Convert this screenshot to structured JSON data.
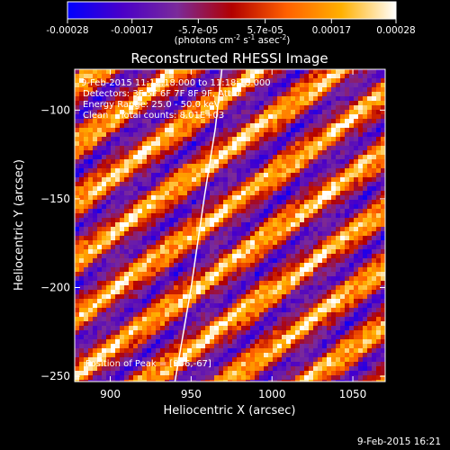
{
  "colorbar": {
    "ticks": [
      {
        "value": -0.00028,
        "label": "-0.00028"
      },
      {
        "value": -0.00017,
        "label": "-0.00017"
      },
      {
        "value": -5.7e-05,
        "label": "-5.7e-05"
      },
      {
        "value": 5.7e-05,
        "label": "5.7e-05"
      },
      {
        "value": 0.00017,
        "label": "0.00017"
      },
      {
        "value": 0.00028,
        "label": "0.00028"
      }
    ],
    "range": [
      -0.00028,
      0.00028
    ],
    "units": {
      "pre": "(photons cm",
      "sup1": "-2",
      "mid1": " s",
      "sup2": "-1",
      "mid2": " asec",
      "sup3": "-2",
      "post": ")"
    },
    "stops": [
      "#0000ff",
      "#4a00c8",
      "#7a2a9a",
      "#b20000",
      "#ff6000",
      "#ffb000",
      "#ffffff"
    ]
  },
  "chart_data": {
    "type": "heatmap",
    "title": "Reconstructed RHESSI Image",
    "xlabel": "Heliocentric X (arcsec)",
    "ylabel": "Heliocentric Y (arcsec)",
    "xlim": [
      878,
      1070
    ],
    "ylim": [
      -253,
      -77
    ],
    "x_ticks": [
      {
        "v": 900,
        "label": "900"
      },
      {
        "v": 950,
        "label": "950"
      },
      {
        "v": 1000,
        "label": "1000"
      },
      {
        "v": 1050,
        "label": "1050"
      }
    ],
    "y_ticks": [
      {
        "v": -100,
        "label": "−100"
      },
      {
        "v": -150,
        "label": "−150"
      },
      {
        "v": -200,
        "label": "−200"
      },
      {
        "v": -250,
        "label": "−250"
      }
    ],
    "limb_curve": [
      [
        940,
        -253
      ],
      [
        950,
        -200
      ],
      [
        958,
        -150
      ],
      [
        965,
        -110
      ],
      [
        969,
        -77
      ]
    ],
    "peak_position": [
      906,
      -67
    ]
  },
  "annotations": {
    "time_range": "9-Feb-2015 11:12:18.000 to 11:18:18.000",
    "detectors": "Detectors: 3F 5F 6F 7F 8F 9F, Att 0",
    "energy": "Energy Range: 25.0 - 50.0 keV",
    "clean": "Clean    Total counts: 8.01E+03",
    "peak": "Position of Peak = [906,-67]"
  },
  "footer": {
    "timestamp": "9-Feb-2015 16:21"
  }
}
